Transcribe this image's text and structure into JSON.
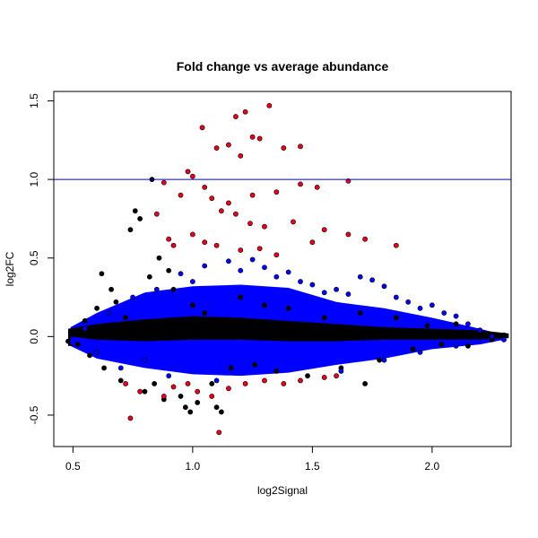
{
  "chart_data": {
    "type": "scatter",
    "title": "Fold change vs average abundance",
    "xlabel": "log2Signal",
    "ylabel": "log2FC",
    "xlim": [
      0.42,
      2.33
    ],
    "ylim": [
      -0.7,
      1.56
    ],
    "xticks": [
      0.5,
      1.0,
      1.5,
      2.0
    ],
    "xtick_labels": [
      "0.5",
      "1.0",
      "1.5",
      "2.0"
    ],
    "yticks": [
      -0.5,
      0.0,
      0.5,
      1.0,
      1.5
    ],
    "ytick_labels": [
      "-0.5",
      "0.0",
      "0.5",
      "1.0",
      "1.5"
    ],
    "grid": false,
    "reference_line": {
      "y": 1.0,
      "color": "#0000cd"
    },
    "colors": {
      "black": "#000000",
      "blue": "#0000ff",
      "red": "#e8001c",
      "outline": "#000000"
    },
    "series": [
      {
        "color": "black",
        "values": [
          [
            0.48,
            -0.03
          ],
          [
            0.5,
            0.02
          ],
          [
            0.52,
            -0.05
          ],
          [
            0.55,
            0.1
          ],
          [
            0.57,
            -0.12
          ],
          [
            0.6,
            0.18
          ],
          [
            0.62,
            0.4
          ],
          [
            0.63,
            -0.2
          ],
          [
            0.66,
            0.3
          ],
          [
            0.68,
            0.22
          ],
          [
            0.7,
            -0.28
          ],
          [
            0.72,
            0.12
          ],
          [
            0.74,
            0.68
          ],
          [
            0.76,
            0.8
          ],
          [
            0.78,
            0.75
          ],
          [
            0.8,
            -0.35
          ],
          [
            0.82,
            0.38
          ],
          [
            0.84,
            -0.3
          ],
          [
            0.86,
            0.5
          ],
          [
            0.88,
            -0.4
          ],
          [
            0.9,
            0.42
          ],
          [
            0.92,
            0.3
          ],
          [
            0.95,
            -0.38
          ],
          [
            0.97,
            -0.45
          ],
          [
            1.0,
            0.2
          ],
          [
            1.02,
            -0.42
          ],
          [
            1.05,
            0.15
          ],
          [
            1.08,
            -0.3
          ],
          [
            1.12,
            0.1
          ],
          [
            1.16,
            -0.2
          ],
          [
            1.2,
            0.25
          ],
          [
            1.26,
            -0.18
          ],
          [
            1.3,
            0.2
          ],
          [
            1.35,
            -0.22
          ],
          [
            1.4,
            0.18
          ],
          [
            1.48,
            -0.25
          ],
          [
            1.55,
            0.12
          ],
          [
            1.62,
            -0.2
          ],
          [
            1.7,
            0.15
          ],
          [
            1.78,
            -0.15
          ],
          [
            1.85,
            0.12
          ],
          [
            1.92,
            -0.08
          ],
          [
            1.98,
            0.07
          ],
          [
            2.04,
            -0.05
          ],
          [
            2.1,
            0.08
          ],
          [
            2.15,
            -0.06
          ],
          [
            2.2,
            0.04
          ],
          [
            2.25,
            -0.02
          ],
          [
            2.3,
            0.01
          ],
          [
            0.83,
            1.0
          ],
          [
            1.1,
            -0.45
          ],
          [
            1.12,
            -0.48
          ],
          [
            0.99,
            -0.48
          ],
          [
            1.72,
            -0.3
          ]
        ]
      },
      {
        "color": "blue",
        "values": [
          [
            0.55,
            0.05
          ],
          [
            0.6,
            -0.1
          ],
          [
            0.65,
            0.15
          ],
          [
            0.7,
            -0.2
          ],
          [
            0.75,
            0.25
          ],
          [
            0.8,
            -0.15
          ],
          [
            0.85,
            0.3
          ],
          [
            0.9,
            -0.25
          ],
          [
            0.95,
            0.4
          ],
          [
            1.0,
            0.35
          ],
          [
            1.05,
            0.45
          ],
          [
            1.1,
            -0.28
          ],
          [
            1.15,
            0.48
          ],
          [
            1.2,
            0.42
          ],
          [
            1.25,
            0.49
          ],
          [
            1.3,
            0.44
          ],
          [
            1.35,
            0.38
          ],
          [
            1.4,
            0.41
          ],
          [
            1.45,
            0.35
          ],
          [
            1.5,
            0.33
          ],
          [
            1.55,
            0.28
          ],
          [
            1.6,
            0.3
          ],
          [
            1.65,
            0.27
          ],
          [
            1.7,
            0.38
          ],
          [
            1.75,
            0.36
          ],
          [
            1.8,
            0.32
          ],
          [
            1.85,
            0.25
          ],
          [
            1.9,
            0.22
          ],
          [
            1.95,
            0.18
          ],
          [
            2.0,
            0.2
          ],
          [
            2.05,
            0.15
          ],
          [
            2.1,
            0.13
          ],
          [
            2.15,
            0.08
          ],
          [
            2.2,
            0.04
          ],
          [
            2.25,
            0.0
          ],
          [
            2.3,
            -0.02
          ],
          [
            1.62,
            -0.22
          ],
          [
            1.8,
            -0.15
          ],
          [
            1.95,
            -0.1
          ],
          [
            2.1,
            -0.06
          ]
        ]
      },
      {
        "color": "red",
        "values": [
          [
            1.04,
            1.33
          ],
          [
            1.18,
            1.4
          ],
          [
            1.22,
            1.43
          ],
          [
            1.32,
            1.47
          ],
          [
            1.25,
            1.27
          ],
          [
            1.15,
            1.22
          ],
          [
            1.1,
            1.2
          ],
          [
            1.2,
            1.15
          ],
          [
            1.28,
            1.26
          ],
          [
            1.38,
            1.2
          ],
          [
            1.45,
            1.21
          ],
          [
            0.98,
            1.05
          ],
          [
            1.0,
            1.02
          ],
          [
            1.05,
            0.95
          ],
          [
            0.88,
            0.98
          ],
          [
            0.95,
            0.9
          ],
          [
            1.08,
            0.88
          ],
          [
            1.15,
            0.85
          ],
          [
            1.25,
            0.9
          ],
          [
            1.35,
            0.92
          ],
          [
            1.45,
            0.97
          ],
          [
            1.52,
            0.95
          ],
          [
            1.65,
            0.99
          ],
          [
            1.12,
            0.8
          ],
          [
            1.18,
            0.78
          ],
          [
            1.24,
            0.72
          ],
          [
            1.3,
            0.7
          ],
          [
            1.42,
            0.73
          ],
          [
            1.55,
            0.68
          ],
          [
            1.65,
            0.65
          ],
          [
            1.72,
            0.62
          ],
          [
            1.85,
            0.58
          ],
          [
            0.85,
            0.78
          ],
          [
            0.9,
            0.62
          ],
          [
            0.92,
            0.58
          ],
          [
            1.0,
            0.65
          ],
          [
            1.05,
            0.6
          ],
          [
            1.1,
            0.58
          ],
          [
            1.2,
            0.55
          ],
          [
            1.28,
            0.56
          ],
          [
            1.35,
            0.52
          ],
          [
            1.5,
            0.6
          ],
          [
            0.72,
            -0.3
          ],
          [
            0.74,
            -0.52
          ],
          [
            0.78,
            -0.35
          ],
          [
            0.88,
            -0.38
          ],
          [
            0.92,
            -0.32
          ],
          [
            0.98,
            -0.3
          ],
          [
            1.02,
            -0.35
          ],
          [
            1.08,
            -0.38
          ],
          [
            1.11,
            -0.61
          ],
          [
            1.15,
            -0.33
          ],
          [
            1.22,
            -0.3
          ],
          [
            1.3,
            -0.28
          ],
          [
            1.38,
            -0.3
          ],
          [
            1.45,
            -0.28
          ],
          [
            1.55,
            -0.26
          ],
          [
            1.6,
            -0.25
          ]
        ]
      }
    ]
  }
}
